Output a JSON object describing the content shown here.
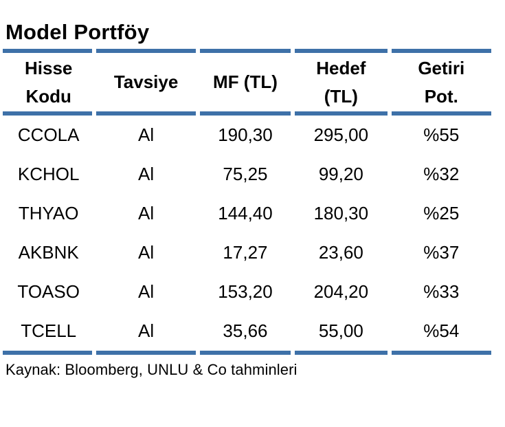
{
  "title": "Model Portföy",
  "table": {
    "headers": {
      "code": {
        "line1": "Hisse",
        "line2": "Kodu"
      },
      "tavsiye": {
        "line1": "Tavsiye"
      },
      "mf": {
        "line1": "MF (TL)"
      },
      "hedef": {
        "line1": "Hedef",
        "line2": "(TL)"
      },
      "getiri": {
        "line1": "Getiri",
        "line2": "Pot."
      }
    },
    "rows": [
      {
        "code": "CCOLA",
        "tavsiye": "Al",
        "mf": "190,30",
        "hedef": "295,00",
        "getiri": "%55"
      },
      {
        "code": "KCHOL",
        "tavsiye": "Al",
        "mf": "75,25",
        "hedef": "99,20",
        "getiri": "%32"
      },
      {
        "code": "THYAO",
        "tavsiye": "Al",
        "mf": "144,40",
        "hedef": "180,30",
        "getiri": "%25"
      },
      {
        "code": "AKBNK",
        "tavsiye": "Al",
        "mf": "17,27",
        "hedef": "23,60",
        "getiri": "%37"
      },
      {
        "code": "TOASO",
        "tavsiye": "Al",
        "mf": "153,20",
        "hedef": "204,20",
        "getiri": "%33"
      },
      {
        "code": "TCELL",
        "tavsiye": "Al",
        "mf": "35,66",
        "hedef": "55,00",
        "getiri": "%54"
      }
    ]
  },
  "footer": {
    "source": "Kaynak: Bloomberg, UNLU & Co tahminleri"
  },
  "colors": {
    "rule_blue": "#3E71A8",
    "text": "#000000"
  }
}
